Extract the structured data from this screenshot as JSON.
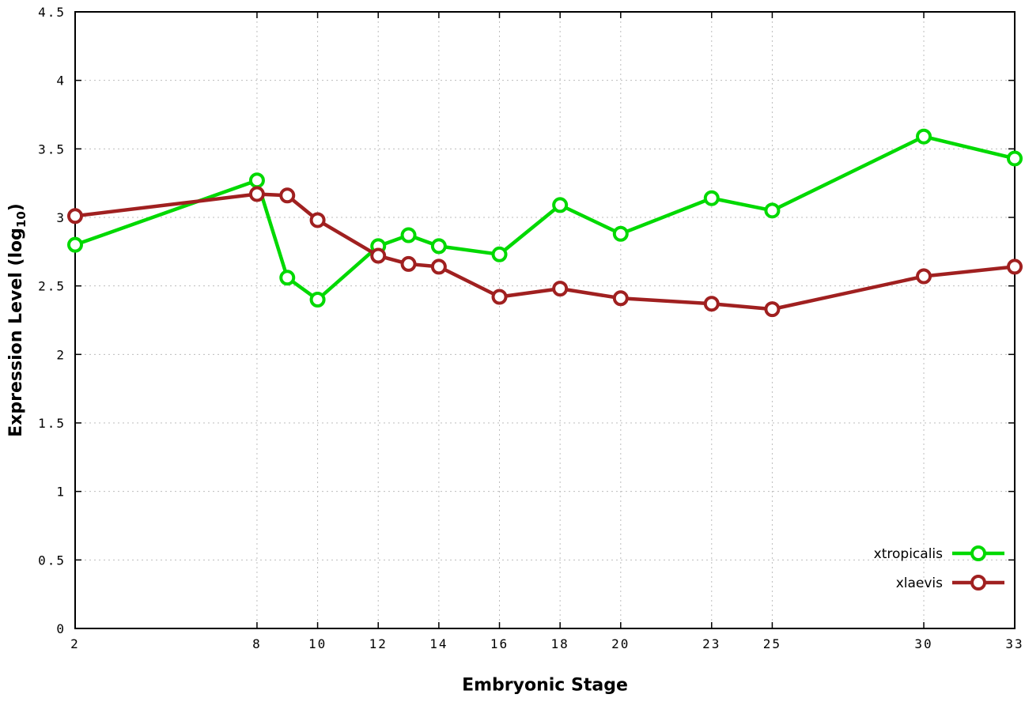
{
  "chart_data": {
    "type": "line",
    "x": [
      2,
      8,
      9,
      10,
      12,
      13,
      14,
      16,
      18,
      20,
      23,
      25,
      30,
      33
    ],
    "series": [
      {
        "name": "xtropicalis",
        "color": "#00d900",
        "values": [
          2.8,
          3.27,
          2.56,
          2.4,
          2.79,
          2.87,
          2.79,
          2.73,
          3.09,
          2.88,
          3.14,
          3.05,
          3.59,
          3.43
        ]
      },
      {
        "name": "xlaevis",
        "color": "#a02020",
        "values": [
          3.01,
          3.17,
          3.16,
          2.98,
          2.72,
          2.66,
          2.64,
          2.42,
          2.48,
          2.41,
          2.37,
          2.33,
          2.57,
          2.64
        ]
      }
    ],
    "title": "",
    "xlabel": "Embryonic Stage",
    "ylabel": "Expression Level (log10)",
    "ylabel_parts": {
      "prefix": "Expression Level (log",
      "sub": "10",
      "suffix": ")"
    },
    "xlim": [
      2,
      33
    ],
    "ylim": [
      0,
      4.5
    ],
    "xticks": [
      2,
      8,
      10,
      12,
      14,
      16,
      18,
      20,
      23,
      25,
      30,
      33
    ],
    "yticks": [
      0,
      0.5,
      1,
      1.5,
      2,
      2.5,
      3,
      3.5,
      4,
      4.5
    ],
    "ytick_labels": [
      "0",
      "0.5",
      "1",
      "1.5",
      "2",
      "2.5",
      "3",
      "3.5",
      "4",
      "4.5"
    ],
    "grid": true,
    "legend_position": "bottom-right"
  },
  "colors": {
    "background": "#ffffff",
    "grid": "#bdbdbd",
    "axis": "#000000"
  }
}
